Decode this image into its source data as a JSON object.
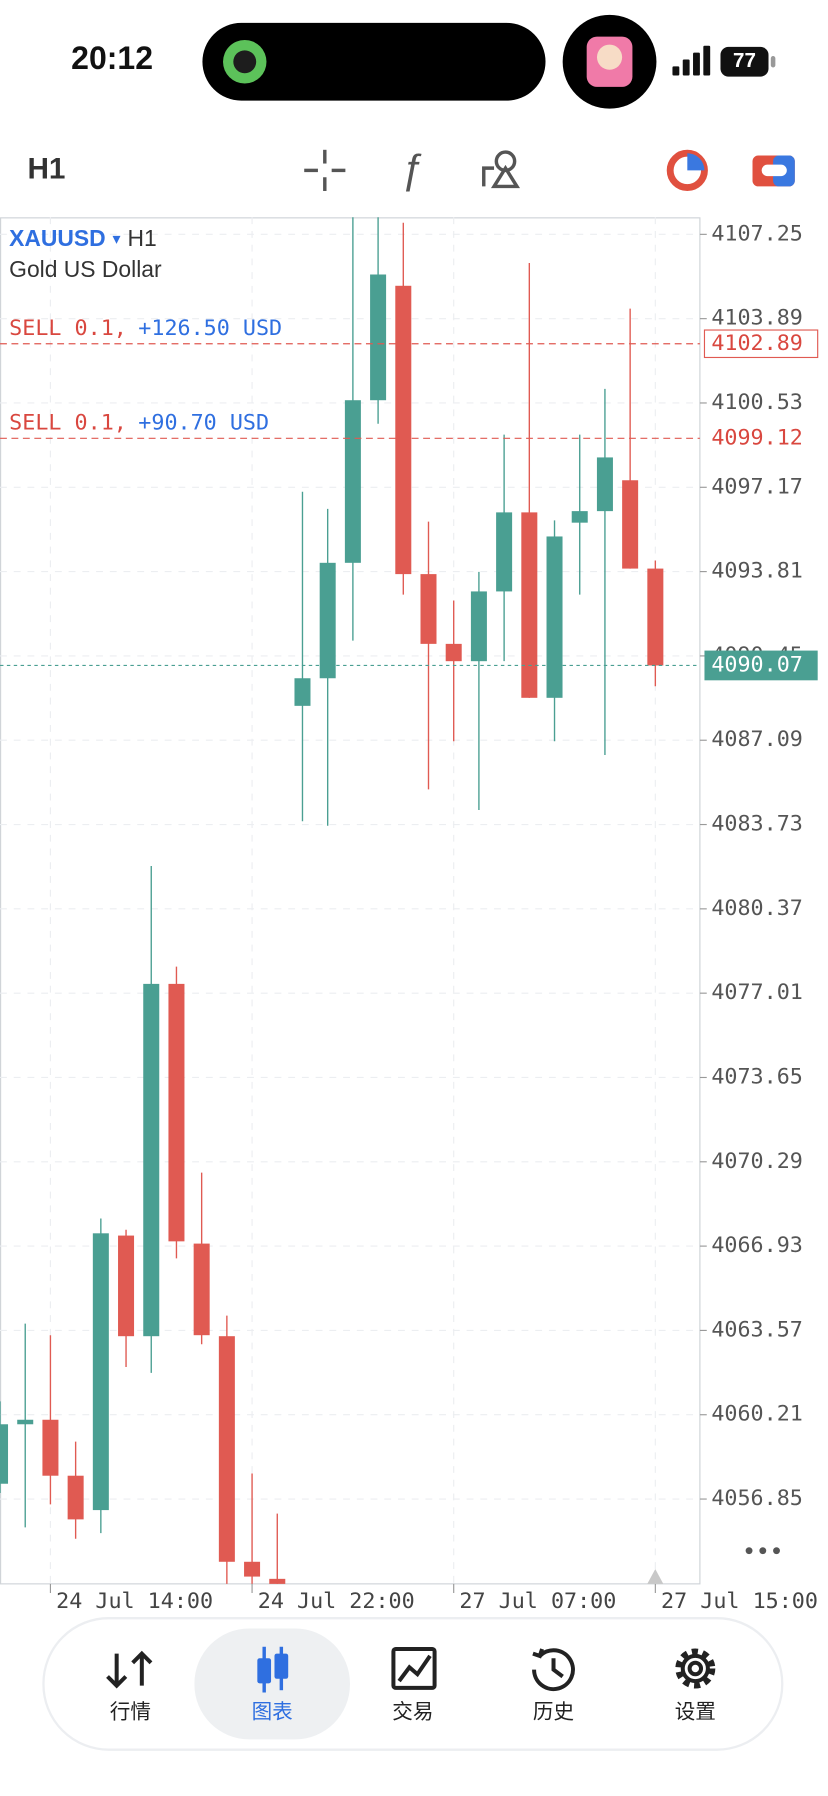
{
  "status_bar": {
    "time": "20:12",
    "battery": "77"
  },
  "toolbar": {
    "timeframe": "H1"
  },
  "chart_data": {
    "type": "candlestick",
    "symbol": "XAUUSD",
    "dropdown": "▾",
    "symbol_timeframe": "H1",
    "symbol_name": "Gold US Dollar",
    "categories": [
      null,
      null,
      "24 Jul 14:00",
      null,
      null,
      null,
      null,
      null,
      null,
      null,
      "24 Jul 22:00",
      null,
      null,
      null,
      null,
      null,
      null,
      null,
      "27 Jul 07:00",
      null,
      null,
      null,
      null,
      null,
      null,
      null,
      "27 Jul 15:00"
    ],
    "open": [
      4057.46,
      4059.83,
      4060.01,
      4057.78,
      4056.41,
      4067.35,
      4063.34,
      4077.38,
      4067.03,
      4063.34,
      4054.35,
      4053.67,
      4088.46,
      4089.56,
      4094.16,
      4100.64,
      4105.2,
      4093.71,
      4090.93,
      4090.24,
      4093.02,
      4096.17,
      4088.78,
      4095.76,
      4096.22,
      4097.45,
      4093.93
    ],
    "high": [
      4060.74,
      4063.84,
      4063.38,
      4059.14,
      4068.03,
      4067.58,
      4082.08,
      4078.07,
      4069.86,
      4064.16,
      4057.87,
      4056.27,
      4096.99,
      4096.31,
      4108.2,
      4108.5,
      4107.71,
      4095.8,
      4092.66,
      4093.8,
      4099.27,
      4106.11,
      4095.85,
      4099.27,
      4101.09,
      4104.29,
      4094.25
    ],
    "low": [
      4057.09,
      4055.72,
      4056.64,
      4055.27,
      4055.49,
      4062.11,
      4061.88,
      4066.44,
      4063.02,
      4053.44,
      4053.44,
      4053.0,
      4083.86,
      4083.68,
      4091.06,
      4099.7,
      4092.89,
      4085.13,
      4087.05,
      4084.31,
      4090.24,
      4088.78,
      4087.05,
      4092.89,
      4086.5,
      4093.93,
      4089.24
    ],
    "close": [
      4059.83,
      4060.01,
      4057.78,
      4056.04,
      4067.44,
      4063.34,
      4077.38,
      4067.12,
      4063.38,
      4054.35,
      4053.76,
      4053.2,
      4089.56,
      4094.16,
      4100.64,
      4105.65,
      4093.71,
      4090.93,
      4090.24,
      4093.02,
      4096.17,
      4088.78,
      4095.21,
      4096.22,
      4098.36,
      4093.93,
      4090.07
    ],
    "up_color": "#4a9f92",
    "down_color": "#e05a52",
    "ylim": [
      4053.47,
      4107.93
    ],
    "yticks": [
      4107.25,
      4103.89,
      4100.53,
      4097.17,
      4093.81,
      4090.45,
      4087.09,
      4083.73,
      4080.37,
      4077.01,
      4073.65,
      4070.29,
      4066.93,
      4063.57,
      4060.21,
      4056.85
    ],
    "grid": true,
    "current_price": 4090.07,
    "trades": [
      {
        "side": "SELL 0.1,",
        "profit": "+126.50 USD",
        "price": 4102.89
      },
      {
        "side": "SELL 0.1,",
        "profit": "+90.70 USD",
        "price": 4099.12
      }
    ]
  },
  "nav": {
    "items": [
      "行情",
      "图表",
      "交易",
      "历史",
      "设置"
    ]
  }
}
